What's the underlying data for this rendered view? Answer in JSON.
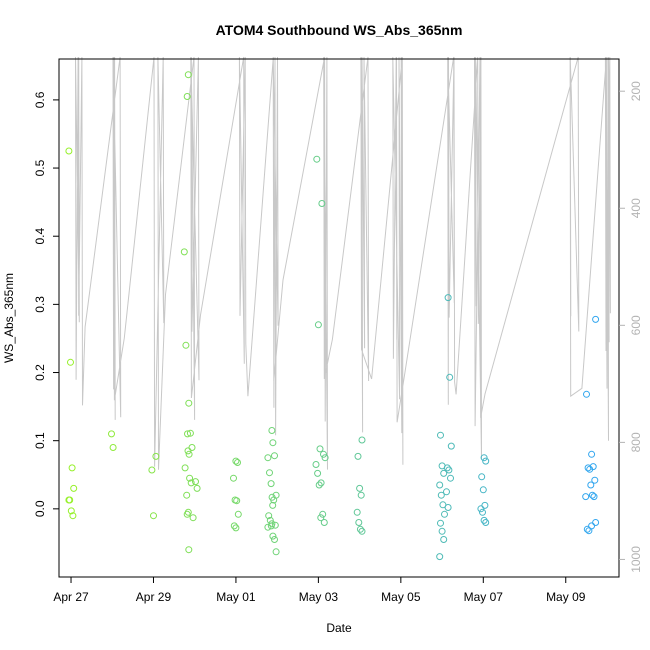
{
  "chart_data": {
    "type": "scatter",
    "title": "ATOM4 Southbound WS_Abs_365nm",
    "xlabel": "Date",
    "ylabel": "WS_Abs_365nm",
    "x_ticks": [
      "Apr 27",
      "Apr 29",
      "May 01",
      "May 03",
      "May 05",
      "May 07",
      "May 09"
    ],
    "xlim": [
      "2016-04-26T17:00",
      "2016-05-10T07:00"
    ],
    "ylim": [
      -0.1,
      0.66
    ],
    "y_ticks": [
      0.0,
      0.1,
      0.2,
      0.3,
      0.4,
      0.5,
      0.6
    ],
    "y2_label": "",
    "y2_ticks": [
      200,
      400,
      600,
      800,
      1000
    ],
    "y2lim": [
      1030,
      145
    ],
    "grid": false,
    "legend": "none",
    "colors": {
      "axis": "#000000",
      "secondary_axis": "#b3b3b3",
      "trace": "#c8c8c8",
      "gradient_start": "#96f02a",
      "gradient_end": "#2fa4f5"
    },
    "series": [
      {
        "x": [
          "2016-04-27T00:10",
          "2016-04-27T00:10",
          "2016-04-27T00:10",
          "2016-04-27T00:10",
          "2016-04-27T00:10",
          "2016-04-27T00:10",
          "2016-04-27T00:10",
          "2016-04-27T00:10",
          "2016-04-28T00:00",
          "2016-04-28T00:00",
          "2016-04-29T00:00",
          "2016-04-29T00:00",
          "2016-04-29T00:00",
          "2016-04-29T19:20",
          "2016-04-29T19:20",
          "2016-04-29T19:20",
          "2016-04-29T19:20",
          "2016-04-29T19:20",
          "2016-04-29T19:20",
          "2016-04-29T19:20",
          "2016-04-29T19:20",
          "2016-04-29T21:00",
          "2016-04-29T21:00",
          "2016-04-29T21:00",
          "2016-04-29T21:00",
          "2016-04-29T21:00",
          "2016-04-29T21:00",
          "2016-04-29T21:00",
          "2016-04-29T21:00",
          "2016-04-29T21:00",
          "2016-04-30T00:00",
          "2016-04-30T00:00",
          "2016-04-30T00:00",
          "2016-05-01T00:00",
          "2016-05-01T00:00",
          "2016-05-01T00:00",
          "2016-05-01T00:00",
          "2016-05-01T00:00",
          "2016-05-01T00:00",
          "2016-05-01T00:00",
          "2016-05-01T00:00",
          "2016-05-01T20:00",
          "2016-05-01T20:00",
          "2016-05-01T20:00",
          "2016-05-01T20:00",
          "2016-05-01T20:00",
          "2016-05-01T20:00",
          "2016-05-01T20:00",
          "2016-05-01T20:00",
          "2016-05-01T20:00",
          "2016-05-01T22:00",
          "2016-05-01T22:00",
          "2016-05-01T22:00",
          "2016-05-01T22:00",
          "2016-05-01T22:00",
          "2016-05-01T22:00",
          "2016-05-01T22:00",
          "2016-05-01T22:00",
          "2016-05-01T22:00",
          "2016-05-01T22:00",
          "2016-05-03T00:00",
          "2016-05-03T00:00",
          "2016-05-03T00:00",
          "2016-05-03T00:00",
          "2016-05-03T00:00",
          "2016-05-03T00:00",
          "2016-05-03T00:00",
          "2016-05-03T03:00",
          "2016-05-03T03:00",
          "2016-05-03T03:00",
          "2016-05-03T03:00",
          "2016-05-03T03:00",
          "2016-05-03T03:00",
          "2016-05-04T00:00",
          "2016-05-04T00:00",
          "2016-05-04T00:00",
          "2016-05-04T00:00",
          "2016-05-04T00:00",
          "2016-05-04T00:00",
          "2016-05-04T00:00",
          "2016-05-04T00:00",
          "2016-05-06T00:00",
          "2016-05-06T00:00",
          "2016-05-06T00:00",
          "2016-05-06T00:00",
          "2016-05-06T00:00",
          "2016-05-06T00:00",
          "2016-05-06T00:00",
          "2016-05-06T00:00",
          "2016-05-06T00:00",
          "2016-05-06T00:00",
          "2016-05-06T00:00",
          "2016-05-06T04:00",
          "2016-05-06T04:00",
          "2016-05-06T04:00",
          "2016-05-06T04:00",
          "2016-05-06T04:00",
          "2016-05-06T04:00",
          "2016-05-06T04:00",
          "2016-05-06T04:00",
          "2016-05-07T00:00",
          "2016-05-07T00:00",
          "2016-05-07T00:00",
          "2016-05-07T00:00",
          "2016-05-07T00:00",
          "2016-05-07T00:00",
          "2016-05-07T00:00",
          "2016-05-07T00:00",
          "2016-05-07T00:00",
          "2016-05-09T13:00",
          "2016-05-09T13:00",
          "2016-05-09T13:00",
          "2016-05-09T13:00",
          "2016-05-09T13:00",
          "2016-05-09T13:00",
          "2016-05-09T16:00",
          "2016-05-09T16:00",
          "2016-05-09T16:00",
          "2016-05-09T16:00",
          "2016-05-09T16:00",
          "2016-05-09T16:00",
          "2016-05-09T16:00",
          "2016-05-09T16:00",
          "2016-05-09T16:00"
        ],
        "y": [
          0.525,
          0.215,
          0.06,
          0.03,
          0.013,
          -0.003,
          -0.01,
          0.013,
          0.11,
          0.09,
          0.077,
          0.057,
          -0.01,
          0.637,
          0.377,
          0.24,
          0.11,
          0.08,
          0.06,
          0.02,
          -0.005,
          0.605,
          0.155,
          0.111,
          0.09,
          0.085,
          0.045,
          0.038,
          -0.008,
          -0.06,
          0.04,
          0.03,
          -0.013,
          0.07,
          0.068,
          0.045,
          0.013,
          0.012,
          -0.008,
          -0.025,
          -0.028,
          0.115,
          0.075,
          0.053,
          0.037,
          0.005,
          -0.01,
          -0.017,
          -0.022,
          -0.027,
          0.097,
          0.078,
          0.02,
          0.017,
          0.013,
          -0.024,
          -0.025,
          -0.04,
          -0.045,
          -0.063,
          0.513,
          0.27,
          0.088,
          0.065,
          0.052,
          0.035,
          -0.013,
          0.448,
          0.08,
          0.075,
          0.038,
          -0.008,
          -0.02,
          0.101,
          0.077,
          0.03,
          0.02,
          -0.005,
          -0.02,
          -0.03,
          -0.033,
          0.108,
          0.063,
          0.052,
          0.035,
          0.02,
          0.006,
          -0.008,
          -0.021,
          -0.033,
          -0.045,
          -0.07,
          0.31,
          0.193,
          0.092,
          0.06,
          0.057,
          0.045,
          0.025,
          0.002,
          0.075,
          0.07,
          0.047,
          0.028,
          0.005,
          0.0,
          -0.005,
          -0.017,
          -0.02,
          0.168,
          0.06,
          0.058,
          0.018,
          -0.03,
          -0.032,
          0.278,
          0.08,
          0.062,
          0.042,
          0.035,
          0.02,
          0.018,
          -0.02,
          -0.025
        ]
      }
    ]
  }
}
